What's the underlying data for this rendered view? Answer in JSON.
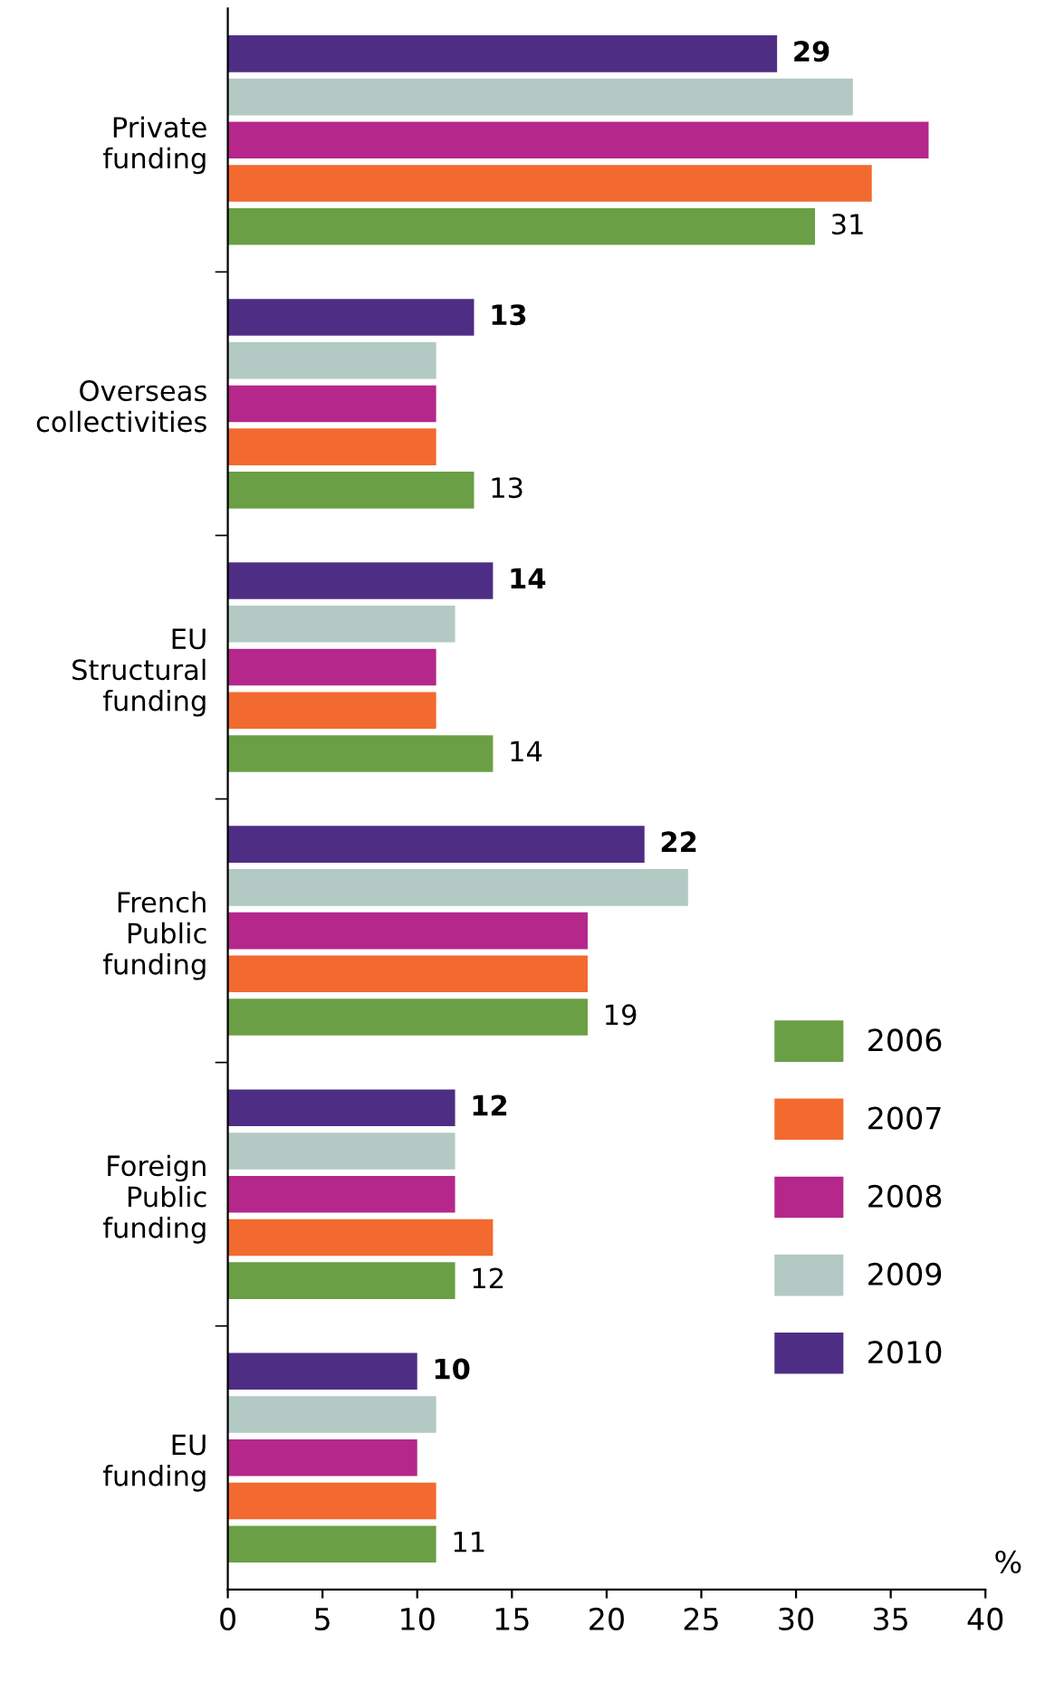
{
  "chart_data": {
    "type": "bar",
    "orientation": "horizontal",
    "xlabel": "%",
    "categories": [
      "Private\nfunding",
      "Overseas\ncollectivities",
      "EU\nStructural\nfunding",
      "French\nPublic\nfunding",
      "Foreign\nPublic\nfunding",
      "EU\nfunding"
    ],
    "series": [
      {
        "name": "2006",
        "color": "#6a9f45",
        "values": [
          31,
          13,
          14,
          19,
          12,
          11
        ],
        "value_labels": [
          "31",
          "13",
          "14",
          "19",
          "12",
          "11"
        ]
      },
      {
        "name": "2007",
        "color": "#f26a2f",
        "values": [
          34,
          11,
          11,
          19,
          14,
          11
        ]
      },
      {
        "name": "2008",
        "color": "#b5278a",
        "values": [
          37,
          11,
          11,
          19,
          12,
          10
        ]
      },
      {
        "name": "2009",
        "color": "#b3c9c3",
        "values": [
          33,
          11,
          12,
          24.3,
          12,
          11
        ]
      },
      {
        "name": "2010",
        "color": "#4e2e85",
        "values": [
          29,
          13,
          14,
          22,
          12,
          10
        ],
        "value_labels": [
          "29",
          "13",
          "14",
          "22",
          "12",
          "10"
        ]
      }
    ],
    "xlim": [
      0,
      40
    ],
    "xticks": [
      0,
      5,
      10,
      15,
      20,
      25,
      30,
      35,
      40
    ],
    "grid": false,
    "legend": "bottom right"
  }
}
